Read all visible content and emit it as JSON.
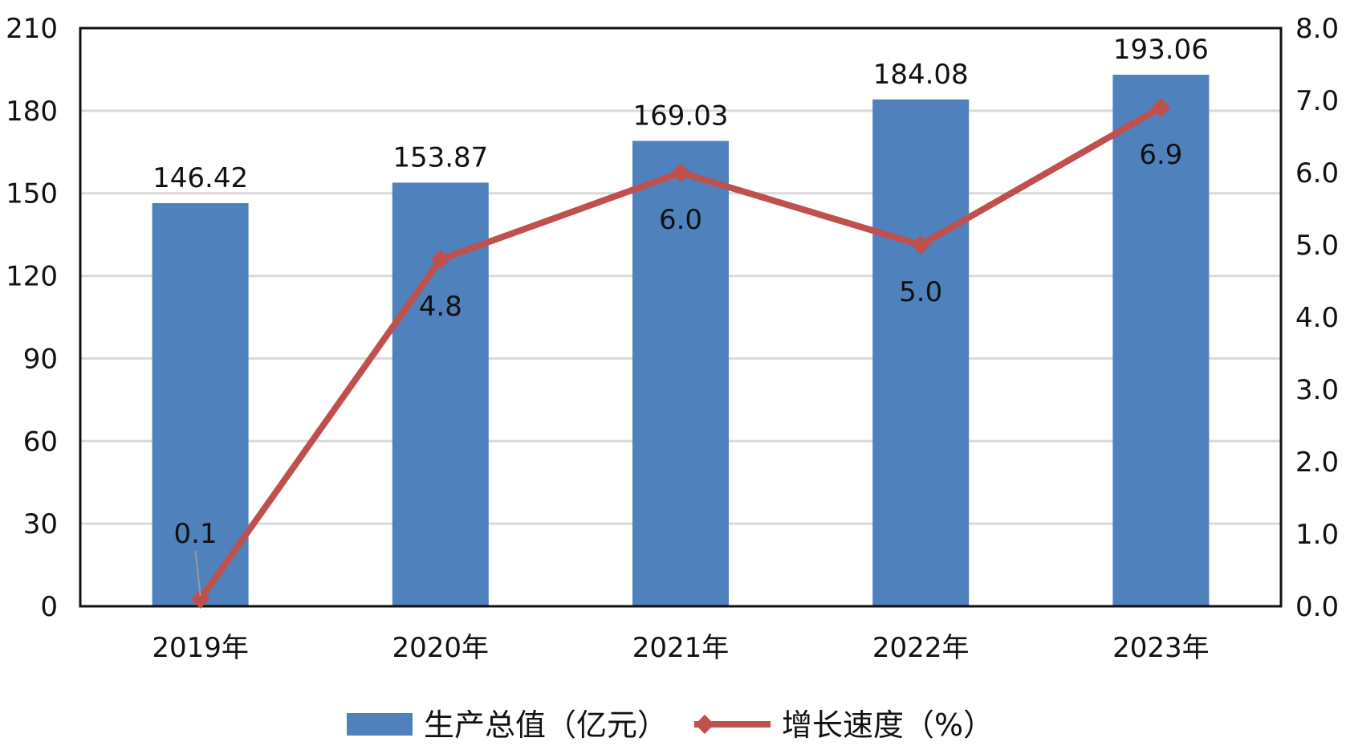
{
  "chart_data": {
    "type": "bar",
    "categories": [
      "2019年",
      "2020年",
      "2021年",
      "2022年",
      "2023年"
    ],
    "series": [
      {
        "name": "生产总值（亿元）",
        "type": "bar",
        "axis": "left",
        "values": [
          146.42,
          153.87,
          169.03,
          184.08,
          193.06
        ],
        "labels": [
          "146.42",
          "153.87",
          "169.03",
          "184.08",
          "193.06"
        ],
        "color": "#4F81BD"
      },
      {
        "name": "增长速度（%）",
        "type": "line",
        "axis": "right",
        "marker": "diamond",
        "values": [
          0.1,
          4.8,
          6.0,
          5.0,
          6.9
        ],
        "labels": [
          "0.1",
          "4.8",
          "6.0",
          "5.0",
          "6.9"
        ],
        "color": "#C0504D"
      }
    ],
    "y_left": {
      "ylim": [
        0,
        210
      ],
      "ticks": [
        0,
        30,
        60,
        90,
        120,
        150,
        180,
        210
      ],
      "tick_labels": [
        "0",
        "30",
        "60",
        "90",
        "120",
        "150",
        "180",
        "210"
      ]
    },
    "y_right": {
      "ylim": [
        0,
        8
      ],
      "ticks": [
        0,
        1,
        2,
        3,
        4,
        5,
        6,
        7,
        8
      ],
      "tick_labels": [
        "0.0",
        "1.0",
        "2.0",
        "3.0",
        "4.0",
        "5.0",
        "6.0",
        "7.0",
        "8.0"
      ]
    },
    "grid": true,
    "legend": "bottom"
  }
}
